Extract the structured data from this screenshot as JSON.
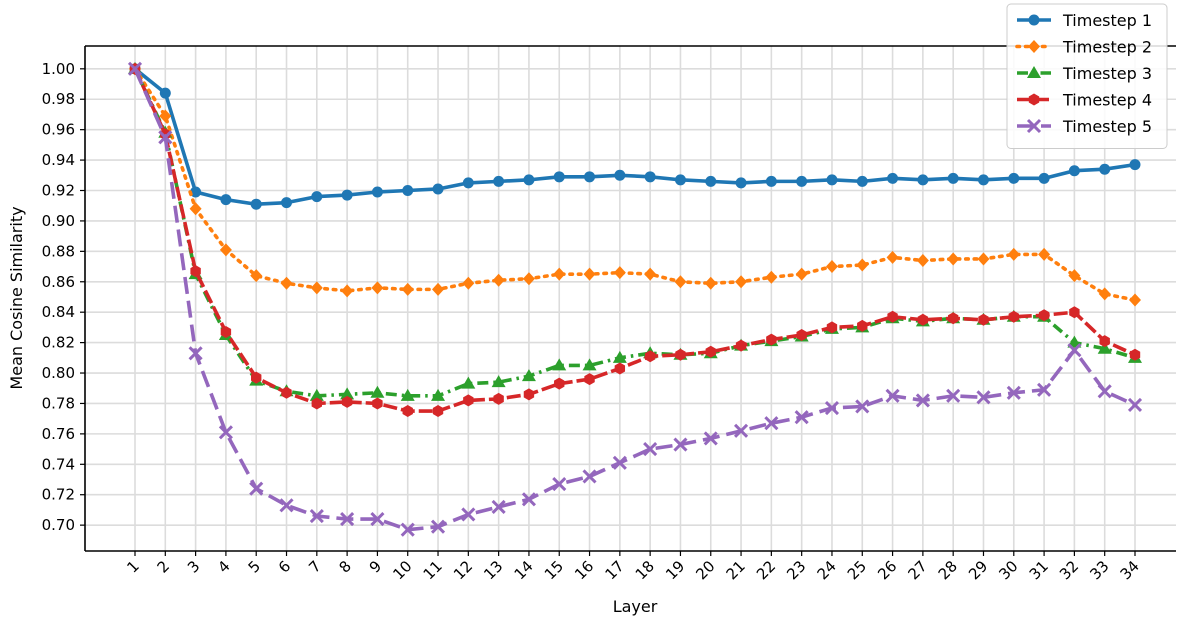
{
  "chart_data": {
    "type": "line",
    "xlabel": "Layer",
    "ylabel": "Mean Cosine Similarity",
    "x": [
      1,
      2,
      3,
      4,
      5,
      6,
      7,
      8,
      9,
      10,
      11,
      12,
      13,
      14,
      15,
      16,
      17,
      18,
      19,
      20,
      21,
      22,
      23,
      24,
      25,
      26,
      27,
      28,
      29,
      30,
      31,
      32,
      33,
      34
    ],
    "ylim": [
      0.683,
      1.015
    ],
    "yticks": [
      0.7,
      0.72,
      0.74,
      0.76,
      0.78,
      0.8,
      0.82,
      0.84,
      0.86,
      0.88,
      0.9,
      0.92,
      0.94,
      0.96,
      0.98,
      1.0
    ],
    "ytick_labels": [
      "0.70",
      "0.72",
      "0.74",
      "0.76",
      "0.78",
      "0.80",
      "0.82",
      "0.84",
      "0.86",
      "0.88",
      "0.90",
      "0.92",
      "0.94",
      "0.96",
      "0.98",
      "1.00"
    ],
    "grid": true,
    "legend_position": "top-right",
    "series": [
      {
        "name": "Timestep 1",
        "color": "#1f77b4",
        "linestyle": "solid",
        "marker": "circle",
        "values": [
          1.0,
          0.984,
          0.919,
          0.914,
          0.911,
          0.912,
          0.916,
          0.917,
          0.919,
          0.92,
          0.921,
          0.925,
          0.926,
          0.927,
          0.929,
          0.929,
          0.93,
          0.929,
          0.927,
          0.926,
          0.925,
          0.926,
          0.926,
          0.927,
          0.926,
          0.928,
          0.927,
          0.928,
          0.927,
          0.928,
          0.928,
          0.933,
          0.934,
          0.937
        ]
      },
      {
        "name": "Timestep 2",
        "color": "#ff7f0e",
        "linestyle": "dotted",
        "marker": "diamond",
        "values": [
          1.0,
          0.969,
          0.908,
          0.881,
          0.864,
          0.859,
          0.856,
          0.854,
          0.856,
          0.855,
          0.855,
          0.859,
          0.861,
          0.862,
          0.865,
          0.865,
          0.866,
          0.865,
          0.86,
          0.859,
          0.86,
          0.863,
          0.865,
          0.87,
          0.871,
          0.876,
          0.874,
          0.875,
          0.875,
          0.878,
          0.878,
          0.864,
          0.852,
          0.848
        ]
      },
      {
        "name": "Timestep 3",
        "color": "#2ca02c",
        "linestyle": "dashdot",
        "marker": "triangle",
        "values": [
          1.0,
          0.958,
          0.865,
          0.825,
          0.795,
          0.788,
          0.785,
          0.786,
          0.787,
          0.785,
          0.785,
          0.793,
          0.794,
          0.798,
          0.805,
          0.805,
          0.81,
          0.813,
          0.812,
          0.813,
          0.818,
          0.821,
          0.824,
          0.829,
          0.83,
          0.836,
          0.834,
          0.836,
          0.835,
          0.837,
          0.837,
          0.82,
          0.816,
          0.81
        ]
      },
      {
        "name": "Timestep 4",
        "color": "#d62728",
        "linestyle": "longdash",
        "marker": "hexagon",
        "values": [
          1.0,
          0.957,
          0.867,
          0.827,
          0.797,
          0.787,
          0.78,
          0.781,
          0.78,
          0.775,
          0.775,
          0.782,
          0.783,
          0.786,
          0.793,
          0.796,
          0.803,
          0.811,
          0.812,
          0.814,
          0.818,
          0.822,
          0.825,
          0.83,
          0.831,
          0.837,
          0.835,
          0.836,
          0.835,
          0.837,
          0.838,
          0.84,
          0.821,
          0.812
        ]
      },
      {
        "name": "Timestep 5",
        "color": "#9467bd",
        "linestyle": "dashed",
        "marker": "x",
        "values": [
          1.0,
          0.955,
          0.813,
          0.761,
          0.724,
          0.713,
          0.706,
          0.704,
          0.704,
          0.697,
          0.699,
          0.707,
          0.712,
          0.717,
          0.727,
          0.732,
          0.741,
          0.75,
          0.753,
          0.757,
          0.762,
          0.767,
          0.771,
          0.777,
          0.778,
          0.785,
          0.782,
          0.785,
          0.784,
          0.787,
          0.789,
          0.815,
          0.788,
          0.779
        ]
      }
    ]
  }
}
